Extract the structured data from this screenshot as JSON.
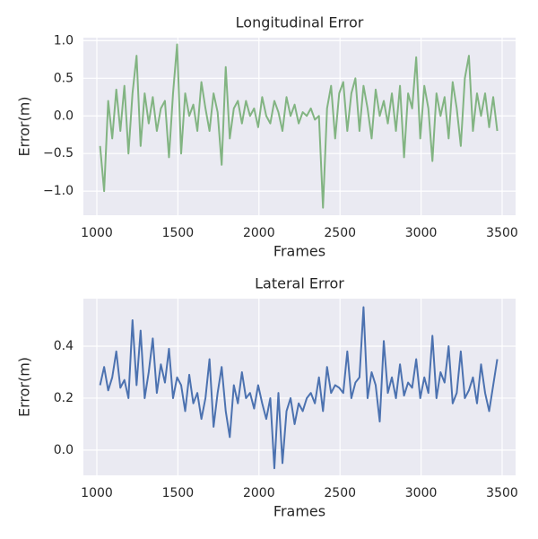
{
  "chart_data": [
    {
      "type": "line",
      "title": "Longitudinal Error",
      "xlabel": "Frames",
      "ylabel": "Error(m)",
      "x": [
        1020,
        1045,
        1070,
        1095,
        1120,
        1145,
        1170,
        1195,
        1220,
        1245,
        1270,
        1295,
        1320,
        1345,
        1370,
        1395,
        1420,
        1445,
        1470,
        1495,
        1520,
        1545,
        1570,
        1595,
        1620,
        1645,
        1670,
        1695,
        1720,
        1745,
        1770,
        1795,
        1820,
        1845,
        1870,
        1895,
        1920,
        1945,
        1970,
        1995,
        2020,
        2045,
        2070,
        2095,
        2120,
        2145,
        2170,
        2195,
        2220,
        2245,
        2270,
        2295,
        2320,
        2345,
        2370,
        2395,
        2420,
        2445,
        2470,
        2495,
        2520,
        2545,
        2570,
        2595,
        2620,
        2645,
        2670,
        2695,
        2720,
        2745,
        2770,
        2795,
        2820,
        2845,
        2870,
        2895,
        2920,
        2945,
        2970,
        2995,
        3020,
        3045,
        3070,
        3095,
        3120,
        3145,
        3170,
        3195,
        3220,
        3245,
        3270,
        3295,
        3320,
        3345,
        3370,
        3395,
        3420,
        3445,
        3470
      ],
      "series": [
        {
          "color": "#82b482",
          "values": [
            -0.4,
            -1.0,
            0.2,
            -0.3,
            0.35,
            -0.2,
            0.4,
            -0.5,
            0.3,
            0.8,
            -0.4,
            0.3,
            -0.1,
            0.25,
            -0.2,
            0.1,
            0.2,
            -0.55,
            0.3,
            0.95,
            -0.5,
            0.3,
            0.0,
            0.15,
            -0.2,
            0.45,
            0.1,
            -0.2,
            0.3,
            0.05,
            -0.65,
            0.65,
            -0.3,
            0.1,
            0.2,
            -0.1,
            0.2,
            0.0,
            0.1,
            -0.15,
            0.25,
            0.0,
            -0.1,
            0.2,
            0.05,
            -0.2,
            0.25,
            0.0,
            0.15,
            -0.1,
            0.05,
            0.0,
            0.1,
            -0.05,
            0.0,
            -1.22,
            0.1,
            0.4,
            -0.3,
            0.3,
            0.45,
            -0.2,
            0.3,
            0.5,
            -0.2,
            0.4,
            0.1,
            -0.3,
            0.35,
            0.0,
            0.2,
            -0.1,
            0.3,
            -0.2,
            0.4,
            -0.55,
            0.3,
            0.1,
            0.78,
            -0.3,
            0.4,
            0.1,
            -0.6,
            0.3,
            0.0,
            0.25,
            -0.3,
            0.45,
            0.1,
            -0.4,
            0.5,
            0.8,
            -0.2,
            0.3,
            0.0,
            0.3,
            -0.15,
            0.25,
            -0.2
          ]
        }
      ],
      "xlim": [
        917,
        3583
      ],
      "xticks": [
        1000,
        1500,
        2000,
        2500,
        3000,
        3500
      ],
      "ylim": [
        -1.32,
        1.04
      ],
      "yticks": [
        {
          "value": -1.0,
          "label": "−1.0"
        },
        {
          "value": -0.5,
          "label": "−0.5"
        },
        {
          "value": 0.0,
          "label": "0.0"
        },
        0.5,
        {
          "value": 1.0,
          "label": "1.0"
        }
      ],
      "grid": true
    },
    {
      "type": "line",
      "title": "Lateral Error",
      "xlabel": "Frames",
      "ylabel": "Error(m)",
      "x": [
        1020,
        1045,
        1070,
        1095,
        1120,
        1145,
        1170,
        1195,
        1220,
        1245,
        1270,
        1295,
        1320,
        1345,
        1370,
        1395,
        1420,
        1445,
        1470,
        1495,
        1520,
        1545,
        1570,
        1595,
        1620,
        1645,
        1670,
        1695,
        1720,
        1745,
        1770,
        1795,
        1820,
        1845,
        1870,
        1895,
        1920,
        1945,
        1970,
        1995,
        2020,
        2045,
        2070,
        2095,
        2120,
        2145,
        2170,
        2195,
        2220,
        2245,
        2270,
        2295,
        2320,
        2345,
        2370,
        2395,
        2420,
        2445,
        2470,
        2495,
        2520,
        2545,
        2570,
        2595,
        2620,
        2645,
        2670,
        2695,
        2720,
        2745,
        2770,
        2795,
        2820,
        2845,
        2870,
        2895,
        2920,
        2945,
        2970,
        2995,
        3020,
        3045,
        3070,
        3095,
        3120,
        3145,
        3170,
        3195,
        3220,
        3245,
        3270,
        3295,
        3320,
        3345,
        3370,
        3395,
        3420,
        3445,
        3470
      ],
      "series": [
        {
          "color": "#4c72b0",
          "values": [
            0.25,
            0.32,
            0.23,
            0.28,
            0.38,
            0.24,
            0.27,
            0.2,
            0.5,
            0.25,
            0.46,
            0.2,
            0.3,
            0.43,
            0.22,
            0.33,
            0.26,
            0.39,
            0.2,
            0.28,
            0.25,
            0.15,
            0.29,
            0.18,
            0.22,
            0.12,
            0.2,
            0.35,
            0.09,
            0.22,
            0.32,
            0.15,
            0.05,
            0.25,
            0.18,
            0.3,
            0.2,
            0.22,
            0.16,
            0.25,
            0.18,
            0.12,
            0.2,
            -0.07,
            0.22,
            -0.05,
            0.15,
            0.2,
            0.1,
            0.18,
            0.15,
            0.2,
            0.22,
            0.18,
            0.28,
            0.15,
            0.32,
            0.22,
            0.25,
            0.24,
            0.22,
            0.38,
            0.2,
            0.26,
            0.28,
            0.55,
            0.2,
            0.3,
            0.25,
            0.11,
            0.42,
            0.22,
            0.28,
            0.2,
            0.33,
            0.21,
            0.26,
            0.24,
            0.35,
            0.2,
            0.28,
            0.22,
            0.44,
            0.2,
            0.3,
            0.26,
            0.4,
            0.18,
            0.22,
            0.38,
            0.2,
            0.23,
            0.28,
            0.18,
            0.33,
            0.22,
            0.15,
            0.25,
            0.35
          ]
        }
      ],
      "xlim": [
        917,
        3583
      ],
      "xticks": [
        1000,
        1500,
        2000,
        2500,
        3000,
        3500
      ],
      "ylim": [
        -0.097,
        0.583
      ],
      "yticks": [
        {
          "value": 0.0,
          "label": "0.0"
        },
        0.2,
        0.4
      ],
      "grid": true
    }
  ]
}
